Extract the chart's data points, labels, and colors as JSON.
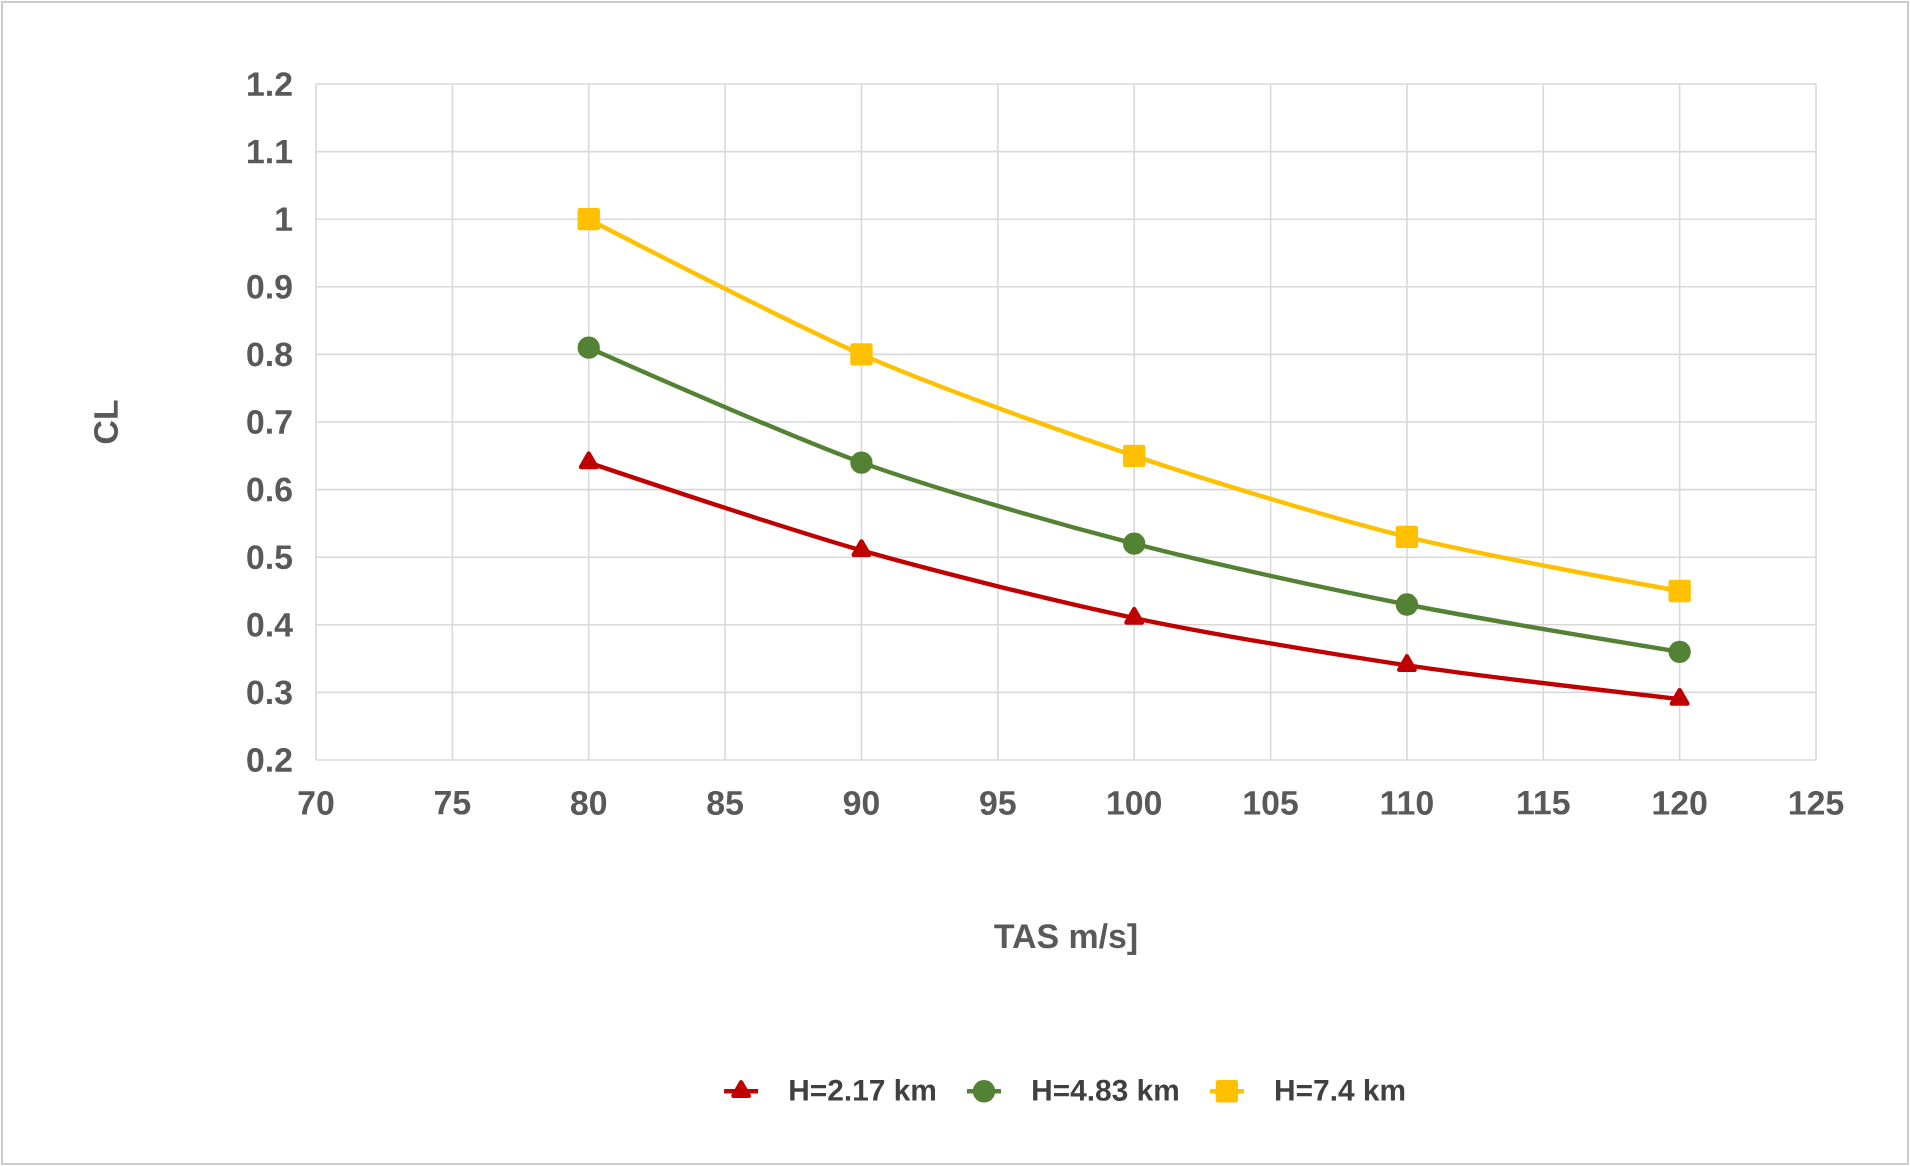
{
  "chart_data": {
    "type": "line",
    "xlabel": "TAS m/s]",
    "ylabel": "CL",
    "x": [
      80,
      90,
      100,
      110,
      120
    ],
    "series": [
      {
        "name": "H=2.17 km",
        "color": "#c00000",
        "marker": "triangle",
        "values": [
          0.64,
          0.51,
          0.41,
          0.34,
          0.29
        ]
      },
      {
        "name": "H=4.83 km",
        "color": "#548235",
        "marker": "circle",
        "values": [
          0.81,
          0.64,
          0.52,
          0.43,
          0.36
        ]
      },
      {
        "name": "H=7.4 km",
        "color": "#ffc000",
        "marker": "square",
        "values": [
          1.0,
          0.8,
          0.65,
          0.53,
          0.45
        ]
      }
    ],
    "xlim": [
      70,
      125
    ],
    "xticks": [
      70,
      75,
      80,
      85,
      90,
      95,
      100,
      105,
      110,
      115,
      120,
      125
    ],
    "ylim": [
      0.2,
      1.2
    ],
    "yticks": [
      0.2,
      0.3,
      0.4,
      0.5,
      0.6,
      0.7,
      0.8,
      0.9,
      1,
      1.1,
      1.2
    ],
    "grid": true,
    "legend": "bottom"
  }
}
